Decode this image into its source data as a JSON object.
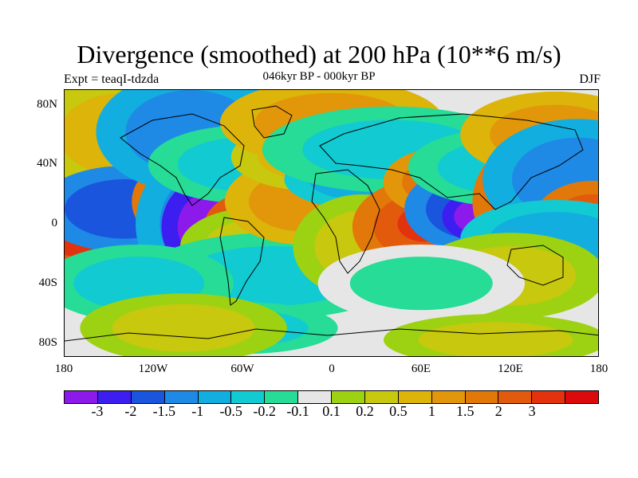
{
  "title": "Divergence (smoothed) at 200 hPa (10**6 m/s)",
  "experiment": "Expt = teaqI-tdzda",
  "period": "046kyr BP - 000kyr BP",
  "season": "DJF",
  "lat_labels": [
    "80N",
    "40N",
    "0",
    "40S",
    "80S"
  ],
  "lon_labels": [
    "180",
    "120W",
    "60W",
    "0",
    "60E",
    "120E",
    "180"
  ],
  "colorbar": {
    "colors": [
      "#8c1aea",
      "#3c1ef0",
      "#1a55de",
      "#1e8ae6",
      "#12aee0",
      "#12cad2",
      "#26dc96",
      "#e6e6e6",
      "#9cd212",
      "#c8c80e",
      "#dcb40a",
      "#e2960a",
      "#e2780a",
      "#e25a0c",
      "#e2320e",
      "#dc0a0a"
    ],
    "labels": [
      "-3",
      "-2",
      "-1.5",
      "-1",
      "-0.5",
      "-0.2",
      "-0.1",
      "0.1",
      "0.2",
      "0.5",
      "1",
      "1.5",
      "2",
      "3"
    ]
  },
  "map_features": [
    {
      "lon": -170,
      "lat": 0,
      "rx": 16,
      "ry": 11,
      "level": 14
    },
    {
      "lon": -160,
      "lat": 2,
      "rx": 9,
      "ry": 6,
      "level": 15
    },
    {
      "lon": -150,
      "lat": 35,
      "rx": 18,
      "ry": 10,
      "level": 11
    },
    {
      "lon": -140,
      "lat": 60,
      "rx": 22,
      "ry": 14,
      "level": 10
    },
    {
      "lon": -140,
      "lat": 10,
      "rx": 20,
      "ry": 10,
      "level": 2
    },
    {
      "lon": -100,
      "lat": 15,
      "rx": 12,
      "ry": 10,
      "level": 13
    },
    {
      "lon": -78,
      "lat": 30,
      "rx": 10,
      "ry": 8,
      "level": 13
    },
    {
      "lon": -95,
      "lat": 62,
      "rx": 22,
      "ry": 14,
      "level": 3
    },
    {
      "lon": -80,
      "lat": 0,
      "rx": 18,
      "ry": 18,
      "level": 3
    },
    {
      "lon": -80,
      "lat": -2,
      "rx": 12,
      "ry": 12,
      "level": 0
    },
    {
      "lon": -60,
      "lat": 40,
      "rx": 22,
      "ry": 9,
      "level": 5
    },
    {
      "lon": -45,
      "lat": 0,
      "rx": 14,
      "ry": 8,
      "level": 14
    },
    {
      "lon": -50,
      "lat": -15,
      "rx": 18,
      "ry": 9,
      "level": 9
    },
    {
      "lon": -40,
      "lat": -35,
      "rx": 30,
      "ry": 10,
      "level": 5
    },
    {
      "lon": -60,
      "lat": -70,
      "rx": 22,
      "ry": 6,
      "level": 5
    },
    {
      "lon": -20,
      "lat": 15,
      "rx": 18,
      "ry": 10,
      "level": 11
    },
    {
      "lon": -10,
      "lat": 45,
      "rx": 20,
      "ry": 8,
      "level": 10
    },
    {
      "lon": 0,
      "lat": 68,
      "rx": 26,
      "ry": 10,
      "level": 11
    },
    {
      "lon": 20,
      "lat": 30,
      "rx": 18,
      "ry": 7,
      "level": 4
    },
    {
      "lon": 20,
      "lat": -15,
      "rx": 16,
      "ry": 12,
      "level": 9
    },
    {
      "lon": 40,
      "lat": 50,
      "rx": 30,
      "ry": 10,
      "level": 5
    },
    {
      "lon": 60,
      "lat": -2,
      "rx": 16,
      "ry": 11,
      "level": 13
    },
    {
      "lon": 62,
      "lat": 0,
      "rx": 9,
      "ry": 6,
      "level": 14
    },
    {
      "lon": 75,
      "lat": 28,
      "rx": 14,
      "ry": 8,
      "level": 12
    },
    {
      "lon": 95,
      "lat": 10,
      "rx": 16,
      "ry": 10,
      "level": 2
    },
    {
      "lon": 100,
      "lat": 5,
      "rx": 9,
      "ry": 6,
      "level": 0
    },
    {
      "lon": 115,
      "lat": 38,
      "rx": 22,
      "ry": 9,
      "level": 5
    },
    {
      "lon": 135,
      "lat": 15,
      "rx": 14,
      "ry": 14,
      "level": 13
    },
    {
      "lon": 150,
      "lat": 60,
      "rx": 22,
      "ry": 10,
      "level": 11
    },
    {
      "lon": 165,
      "lat": 30,
      "rx": 22,
      "ry": 14,
      "level": 3
    },
    {
      "lon": 175,
      "lat": 0,
      "rx": 14,
      "ry": 10,
      "level": 13
    },
    {
      "lon": 150,
      "lat": -10,
      "rx": 22,
      "ry": 9,
      "level": 4
    },
    {
      "lon": 120,
      "lat": -35,
      "rx": 22,
      "ry": 10,
      "level": 9
    },
    {
      "lon": 60,
      "lat": -40,
      "rx": 24,
      "ry": 9,
      "level": 6
    },
    {
      "lon": -130,
      "lat": -40,
      "rx": 22,
      "ry": 9,
      "level": 5
    },
    {
      "lon": -100,
      "lat": -70,
      "rx": 24,
      "ry": 8,
      "level": 9
    },
    {
      "lon": 110,
      "lat": -78,
      "rx": 26,
      "ry": 6,
      "level": 9
    }
  ]
}
